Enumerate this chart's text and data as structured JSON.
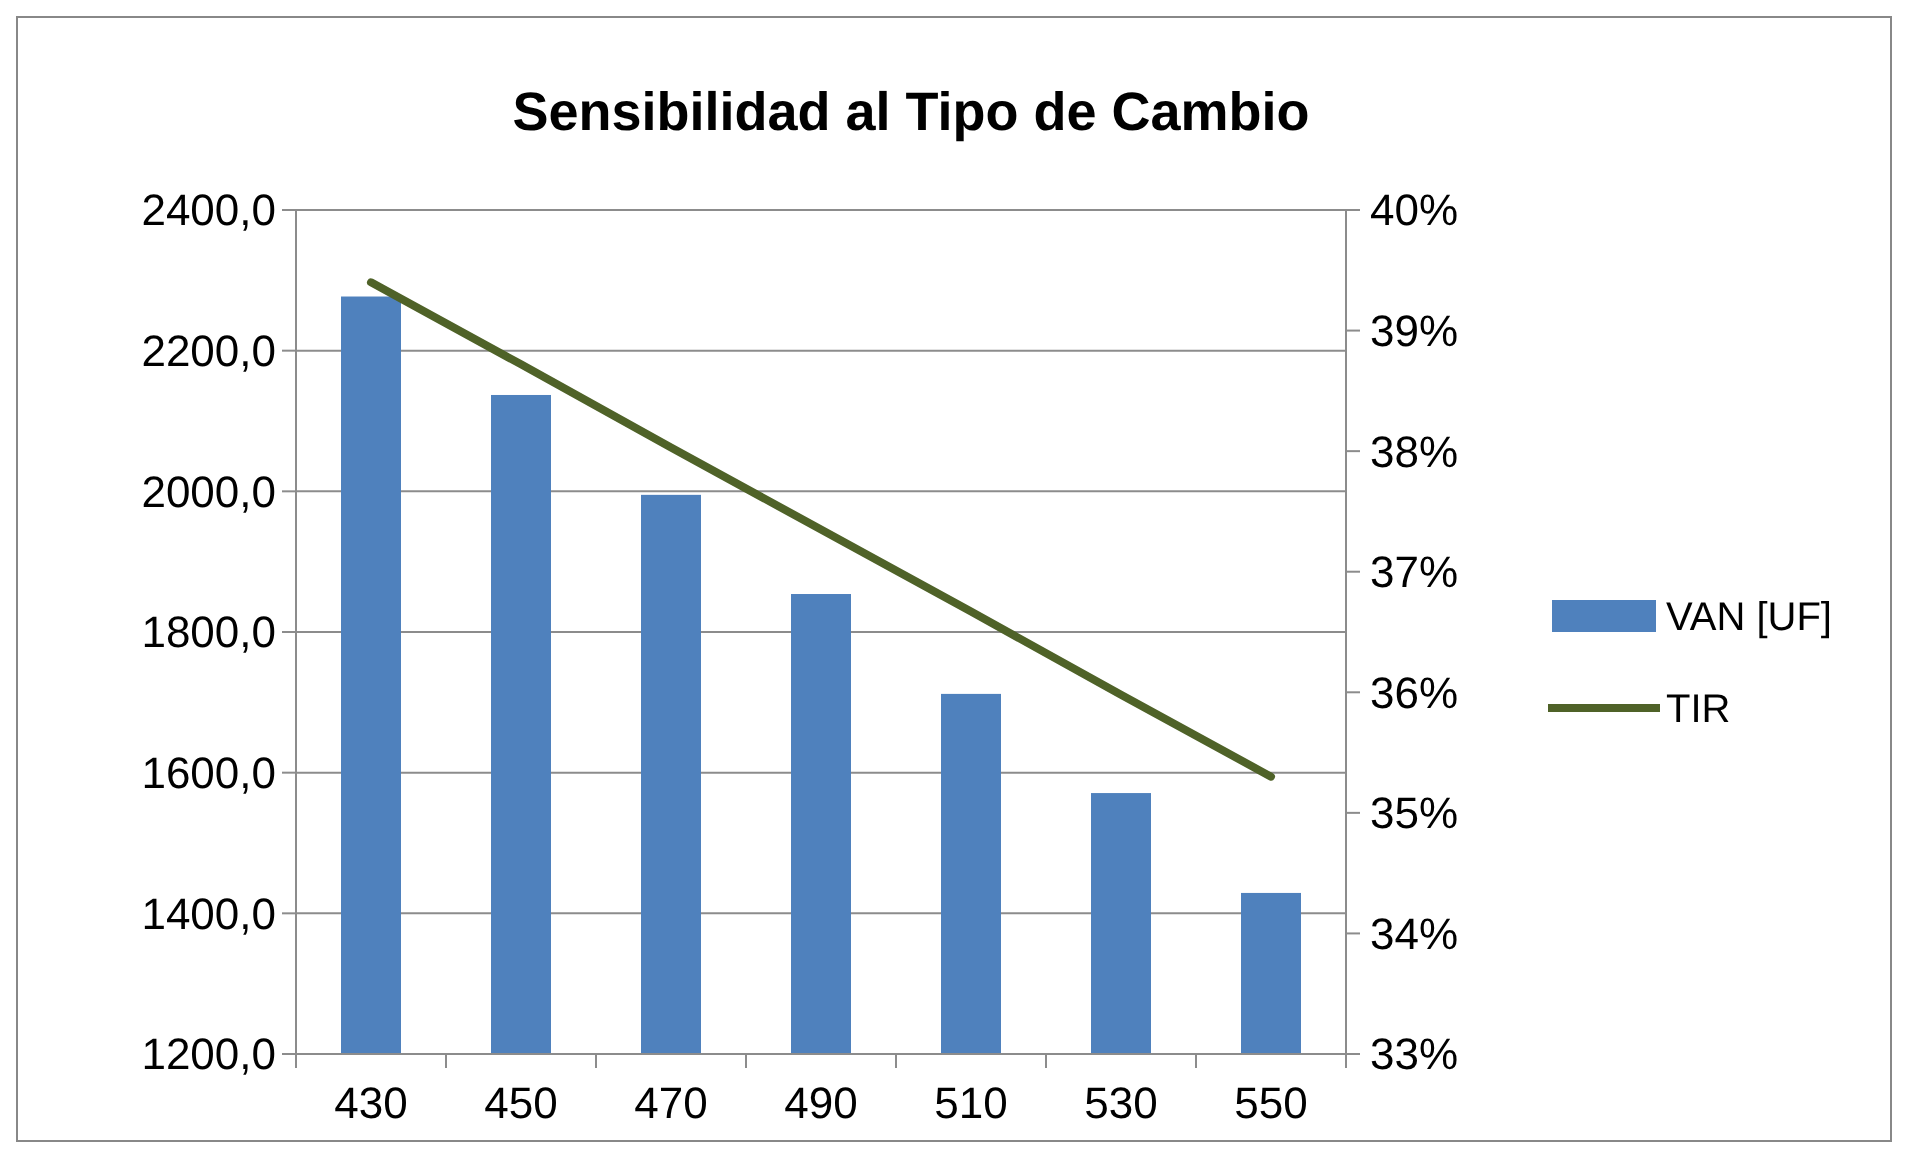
{
  "chart_data": {
    "type": "bar",
    "title": "Sensibilidad al Tipo de Cambio",
    "categories": [
      "430",
      "450",
      "470",
      "490",
      "510",
      "530",
      "550"
    ],
    "series": [
      {
        "name": "VAN [UF]",
        "color": "#4f81bd",
        "values": [
          2277,
          2137,
          1995,
          1854,
          1712,
          1571,
          1429
        ]
      },
      {
        "name": "TIR",
        "type": "line",
        "axis": "y2",
        "color": "#4f6228",
        "values": [
          39.4,
          38.72,
          38.03,
          37.35,
          36.67,
          35.98,
          35.3
        ]
      }
    ],
    "ylim": [
      1200,
      2400
    ],
    "yticks": [
      {
        "value": 1200,
        "label": "1200,0"
      },
      {
        "value": 1400,
        "label": "1400,0"
      },
      {
        "value": 1600,
        "label": "1600,0"
      },
      {
        "value": 1800,
        "label": "1800,0"
      },
      {
        "value": 2000,
        "label": "2000,0"
      },
      {
        "value": 2200,
        "label": "2200,0"
      },
      {
        "value": 2400,
        "label": "2400,0"
      }
    ],
    "y2lim": [
      33,
      40
    ],
    "y2ticks": [
      {
        "value": 33,
        "label": "33%"
      },
      {
        "value": 34,
        "label": "34%"
      },
      {
        "value": 35,
        "label": "35%"
      },
      {
        "value": 36,
        "label": "36%"
      },
      {
        "value": 37,
        "label": "37%"
      },
      {
        "value": 38,
        "label": "38%"
      },
      {
        "value": 39,
        "label": "39%"
      },
      {
        "value": 40,
        "label": "40%"
      }
    ],
    "grid": "y",
    "legend": "right",
    "line_style": "solid",
    "marker": "none"
  }
}
